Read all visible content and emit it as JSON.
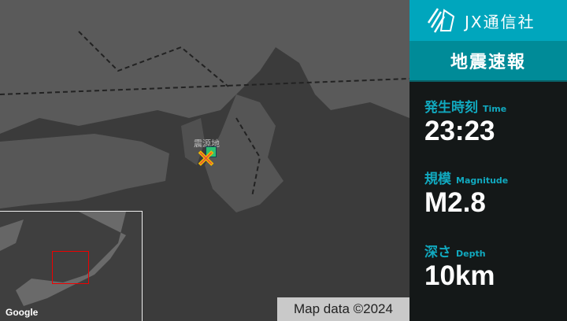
{
  "brand": {
    "name": "JX通信社",
    "logo": "jx-logo-icon",
    "color": "#00a6bd"
  },
  "title": "地震速報",
  "title_color": "#008b98",
  "items": [
    {
      "label": "発生時刻",
      "label_en": "Time",
      "value": "23:23"
    },
    {
      "label": "規模",
      "label_en": "Magnitude",
      "value": "M2.8"
    },
    {
      "label": "深さ",
      "label_en": "Depth",
      "value": "10km"
    }
  ],
  "map": {
    "epicenter_label": "震源地",
    "google": "Google",
    "attribution": "Map data ©2024"
  }
}
